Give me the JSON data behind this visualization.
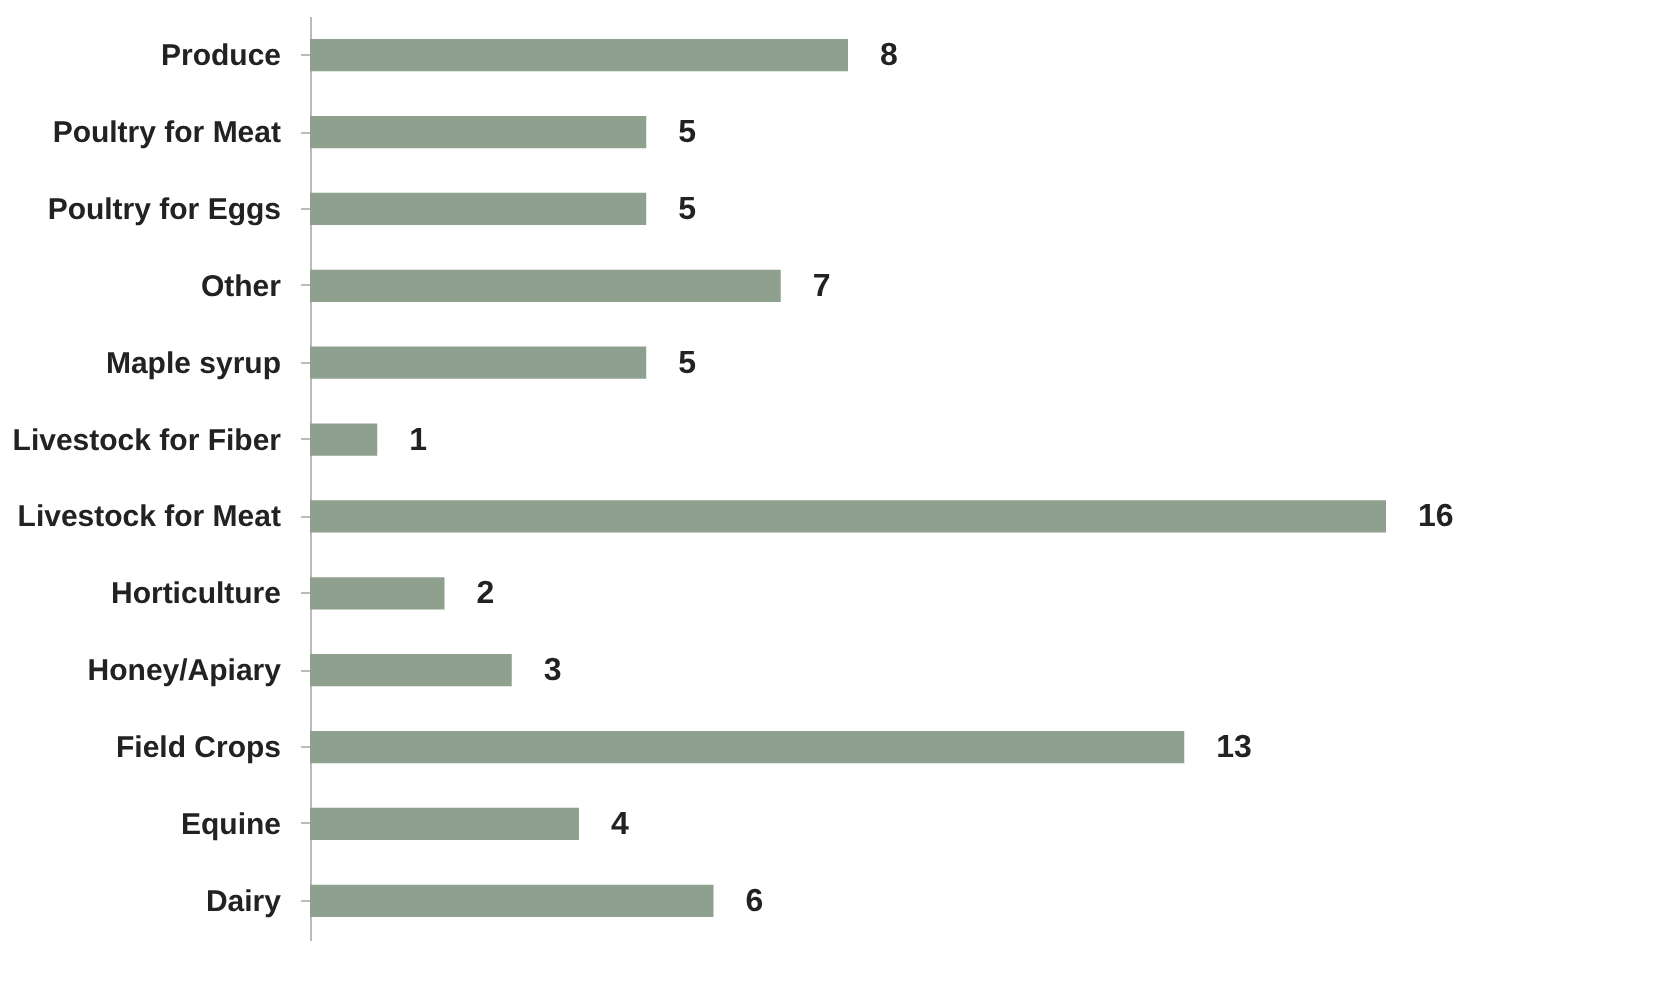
{
  "chart_data": {
    "type": "bar",
    "orientation": "horizontal",
    "categories": [
      "Produce",
      "Poultry for Meat",
      "Poultry for Eggs",
      "Other",
      "Maple syrup",
      "Livestock for Fiber",
      "Livestock for Meat",
      "Horticulture",
      "Honey/Apiary",
      "Field Crops",
      "Equine",
      "Dairy"
    ],
    "values": [
      8,
      5,
      5,
      7,
      5,
      1,
      16,
      2,
      3,
      13,
      4,
      6
    ],
    "color": "#8fa08f",
    "data_labels": true,
    "grid": false
  }
}
